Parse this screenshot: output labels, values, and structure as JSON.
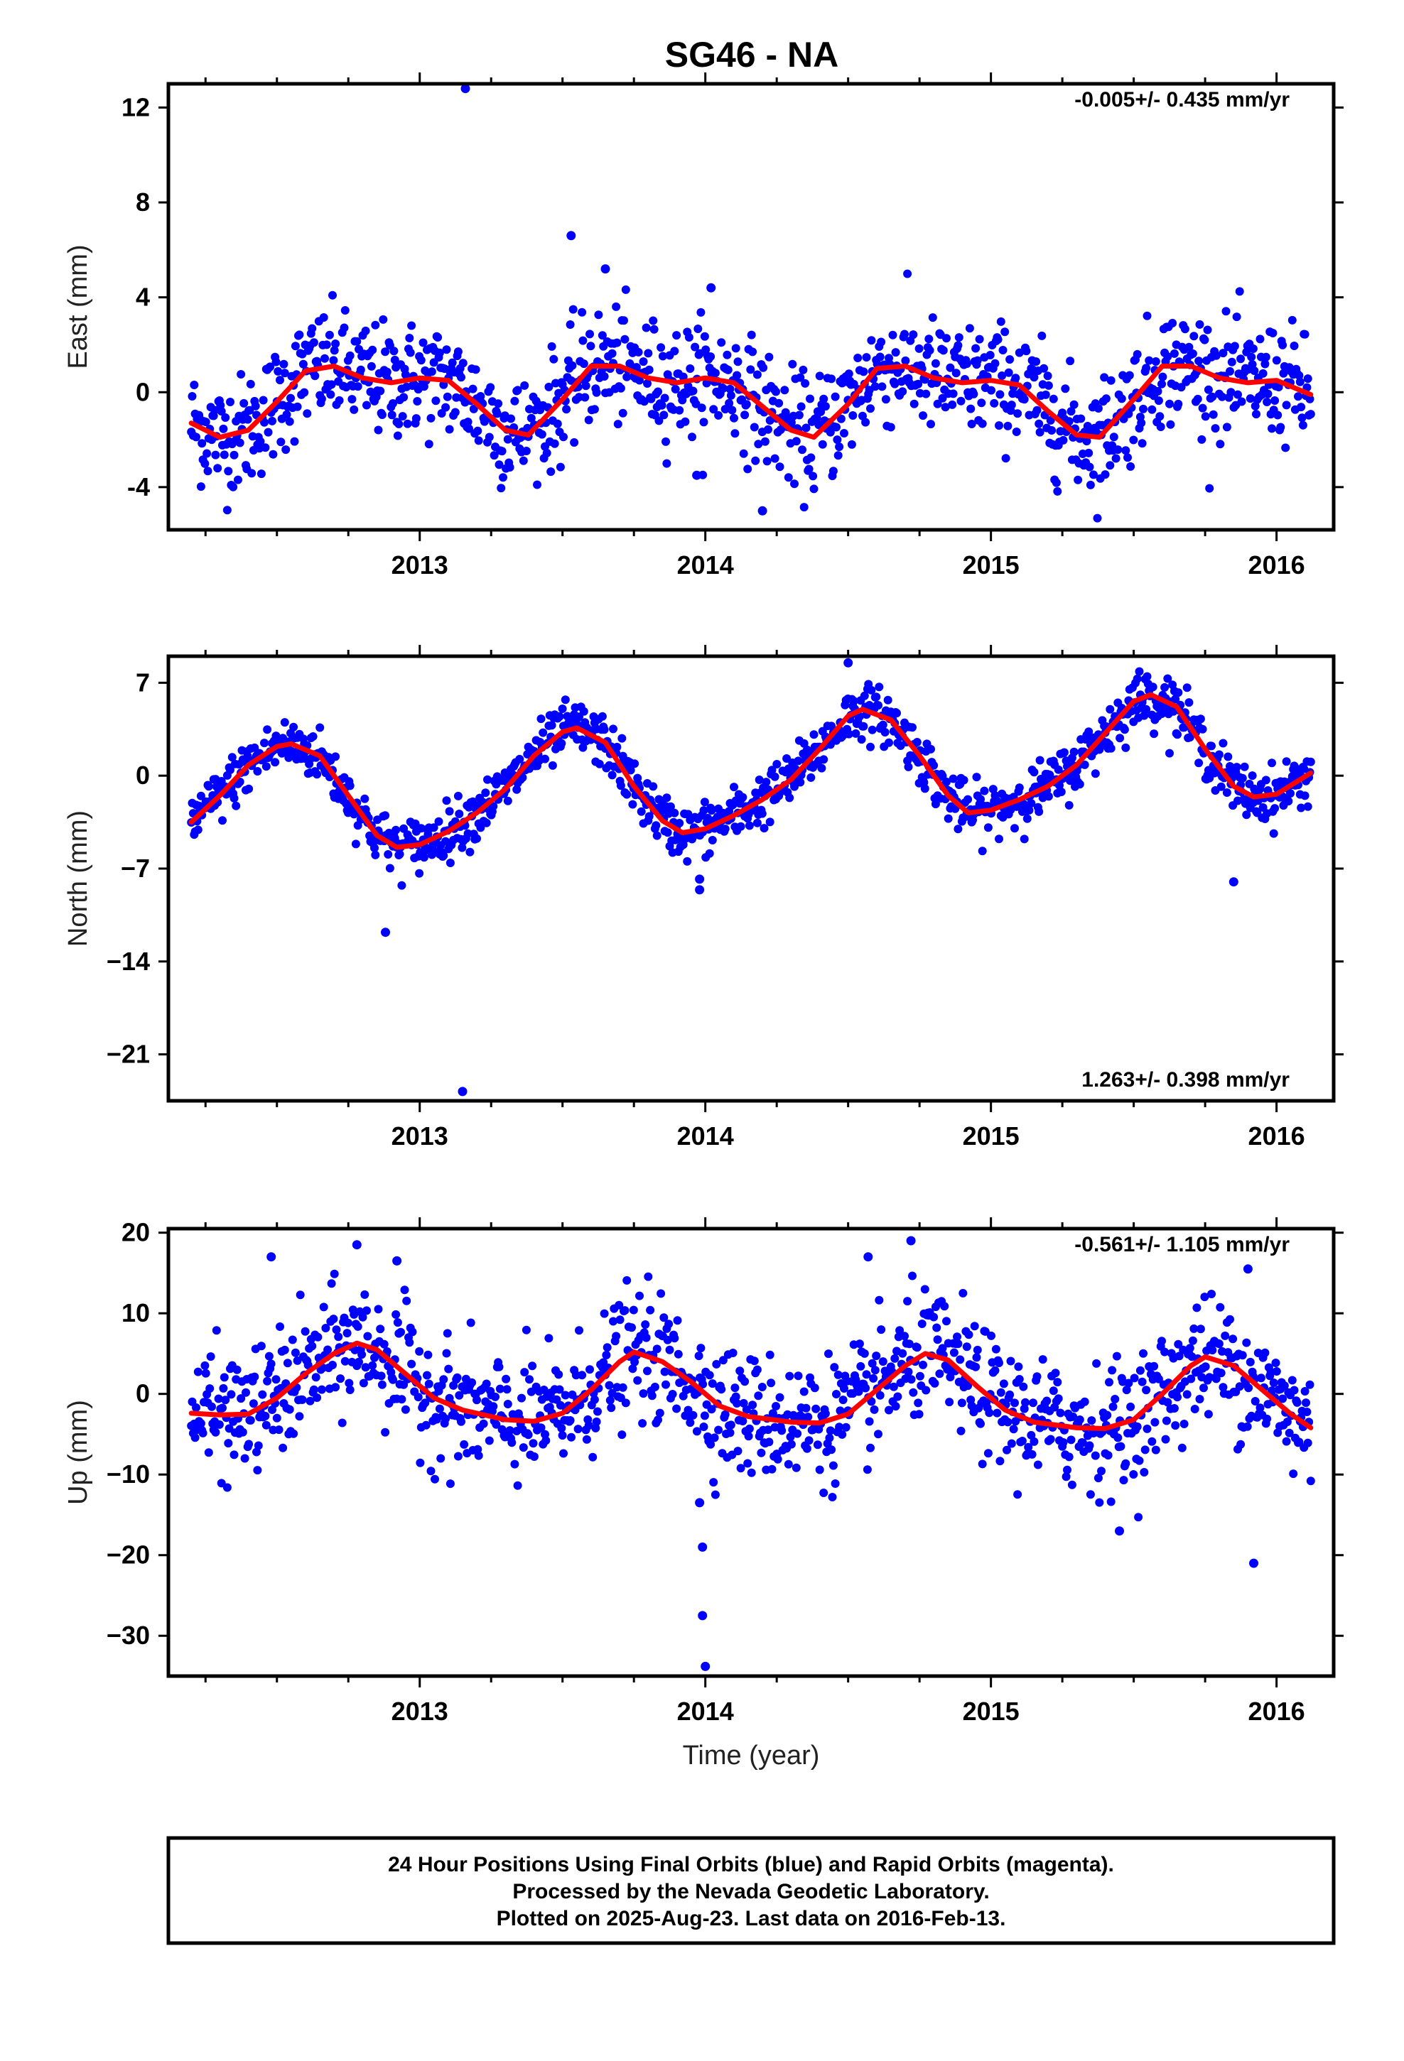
{
  "chart_data": [
    {
      "type": "scatter",
      "title": "SG46 - NA",
      "ylabel": "East (mm)",
      "xlabel": "",
      "rate_text": "-0.005+/- 0.435 mm/yr",
      "xlim": [
        2012.12,
        2016.2
      ],
      "ylim": [
        -5.8,
        13.0
      ],
      "yticks": [
        -4,
        0,
        4,
        8,
        12
      ],
      "ytick_labels": [
        "-4",
        "0",
        "4",
        "8",
        "12"
      ],
      "xticks": [
        2013,
        2014,
        2015,
        2016
      ],
      "xtick_labels": [
        "2013",
        "2014",
        "2015",
        "2016"
      ],
      "grid": false,
      "series": [
        {
          "kind": "daily positions",
          "color": "#0000ff",
          "x_start": 2012.2,
          "x_end": 2016.12,
          "points": 1150,
          "trend_mm_per_yr": -0.005,
          "annual_amplitude_mm": 1.3,
          "scatter_sd_mm": 1.2,
          "outliers": [
            [
              2013.16,
              12.8
            ],
            [
              2013.53,
              6.6
            ],
            [
              2013.65,
              5.2
            ],
            [
              2014.02,
              4.4
            ],
            [
              2013.97,
              -3.5
            ],
            [
              2014.2,
              -5.0
            ]
          ]
        },
        {
          "kind": "seasonal model",
          "color": "#ff0000",
          "points": [
            [
              2012.2,
              -1.3
            ],
            [
              2012.3,
              -1.9
            ],
            [
              2012.4,
              -1.6
            ],
            [
              2012.5,
              -0.4
            ],
            [
              2012.6,
              0.9
            ],
            [
              2012.7,
              1.1
            ],
            [
              2012.8,
              0.6
            ],
            [
              2012.9,
              0.4
            ],
            [
              2013.0,
              0.6
            ],
            [
              2013.1,
              0.5
            ],
            [
              2013.2,
              -0.5
            ],
            [
              2013.3,
              -1.6
            ],
            [
              2013.38,
              -1.8
            ],
            [
              2013.5,
              -0.3
            ],
            [
              2013.6,
              1.1
            ],
            [
              2013.7,
              1.1
            ],
            [
              2013.8,
              0.6
            ],
            [
              2013.9,
              0.4
            ],
            [
              2014.0,
              0.6
            ],
            [
              2014.1,
              0.4
            ],
            [
              2014.2,
              -0.6
            ],
            [
              2014.3,
              -1.6
            ],
            [
              2014.38,
              -1.9
            ],
            [
              2014.5,
              -0.5
            ],
            [
              2014.6,
              1.0
            ],
            [
              2014.7,
              1.1
            ],
            [
              2014.8,
              0.6
            ],
            [
              2014.9,
              0.4
            ],
            [
              2015.0,
              0.5
            ],
            [
              2015.1,
              0.3
            ],
            [
              2015.2,
              -0.8
            ],
            [
              2015.3,
              -1.8
            ],
            [
              2015.38,
              -1.9
            ],
            [
              2015.5,
              -0.3
            ],
            [
              2015.6,
              1.1
            ],
            [
              2015.7,
              1.1
            ],
            [
              2015.8,
              0.6
            ],
            [
              2015.9,
              0.4
            ],
            [
              2016.0,
              0.5
            ],
            [
              2016.12,
              -0.1
            ]
          ]
        }
      ]
    },
    {
      "type": "scatter",
      "title": "",
      "ylabel": "North (mm)",
      "xlabel": "",
      "rate_text": "1.263+/- 0.398 mm/yr",
      "xlim": [
        2012.12,
        2016.2
      ],
      "ylim": [
        -24.5,
        9.0
      ],
      "yticks": [
        -21,
        -14,
        -7,
        0,
        7
      ],
      "ytick_labels": [
        "−21",
        "−14",
        "−7",
        "0",
        "7"
      ],
      "xticks": [
        2013,
        2014,
        2015,
        2016
      ],
      "xtick_labels": [
        "2013",
        "2014",
        "2015",
        "2016"
      ],
      "grid": false,
      "series": [
        {
          "kind": "daily positions",
          "color": "#0000ff",
          "x_start": 2012.2,
          "x_end": 2016.12,
          "points": 1150,
          "trend_mm_per_yr": 1.263,
          "annual_amplitude_mm": 5.0,
          "scatter_sd_mm": 1.0,
          "outliers": [
            [
              2012.88,
              -11.8
            ],
            [
              2013.15,
              -23.8
            ],
            [
              2013.98,
              -8.6
            ],
            [
              2013.98,
              -7.8
            ],
            [
              2014.5,
              8.5
            ],
            [
              2015.85,
              -8.0
            ]
          ]
        },
        {
          "kind": "seasonal model",
          "color": "#ff0000",
          "points": [
            [
              2012.2,
              -3.5
            ],
            [
              2012.3,
              -1.5
            ],
            [
              2012.4,
              0.8
            ],
            [
              2012.5,
              2.2
            ],
            [
              2012.55,
              2.4
            ],
            [
              2012.65,
              1.5
            ],
            [
              2012.75,
              -1.5
            ],
            [
              2012.85,
              -4.5
            ],
            [
              2012.92,
              -5.4
            ],
            [
              2013.0,
              -5.2
            ],
            [
              2013.1,
              -4.2
            ],
            [
              2013.2,
              -2.8
            ],
            [
              2013.3,
              -1.0
            ],
            [
              2013.4,
              1.5
            ],
            [
              2013.5,
              3.3
            ],
            [
              2013.55,
              3.6
            ],
            [
              2013.65,
              2.5
            ],
            [
              2013.75,
              -0.8
            ],
            [
              2013.85,
              -3.4
            ],
            [
              2013.92,
              -4.3
            ],
            [
              2014.0,
              -4.0
            ],
            [
              2014.1,
              -3.0
            ],
            [
              2014.2,
              -1.8
            ],
            [
              2014.3,
              -0.3
            ],
            [
              2014.4,
              2.0
            ],
            [
              2014.5,
              4.5
            ],
            [
              2014.55,
              5.0
            ],
            [
              2014.65,
              4.2
            ],
            [
              2014.75,
              1.5
            ],
            [
              2014.85,
              -1.5
            ],
            [
              2014.92,
              -2.8
            ],
            [
              2015.0,
              -2.6
            ],
            [
              2015.1,
              -1.8
            ],
            [
              2015.2,
              -0.8
            ],
            [
              2015.3,
              0.8
            ],
            [
              2015.4,
              3.2
            ],
            [
              2015.5,
              5.6
            ],
            [
              2015.56,
              6.1
            ],
            [
              2015.65,
              5.2
            ],
            [
              2015.75,
              2.0
            ],
            [
              2015.85,
              -0.8
            ],
            [
              2015.92,
              -1.6
            ],
            [
              2016.0,
              -1.4
            ],
            [
              2016.12,
              0.2
            ]
          ]
        }
      ]
    },
    {
      "type": "scatter",
      "title": "",
      "ylabel": "Up (mm)",
      "xlabel": "Time (year)",
      "rate_text": "-0.561+/- 1.105 mm/yr",
      "xlim": [
        2012.12,
        2016.2
      ],
      "ylim": [
        -35.0,
        20.5
      ],
      "yticks": [
        -30,
        -20,
        -10,
        0,
        10,
        20
      ],
      "ytick_labels": [
        "−30",
        "−20",
        "−10",
        "0",
        "10",
        "20"
      ],
      "xticks": [
        2013,
        2014,
        2015,
        2016
      ],
      "xtick_labels": [
        "2013",
        "2014",
        "2015",
        "2016"
      ],
      "grid": false,
      "series": [
        {
          "kind": "daily positions",
          "color": "#0000ff",
          "x_start": 2012.2,
          "x_end": 2016.12,
          "points": 1150,
          "trend_mm_per_yr": -0.561,
          "annual_amplitude_mm": 4.5,
          "scatter_sd_mm": 3.8,
          "outliers": [
            [
              2012.48,
              17.0
            ],
            [
              2012.78,
              18.5
            ],
            [
              2012.92,
              16.5
            ],
            [
              2014.57,
              17.0
            ],
            [
              2014.72,
              19.0
            ],
            [
              2013.98,
              -13.5
            ],
            [
              2013.99,
              -19.0
            ],
            [
              2013.99,
              -27.5
            ],
            [
              2014.0,
              -33.8
            ],
            [
              2015.45,
              -17.0
            ],
            [
              2015.9,
              15.5
            ],
            [
              2015.92,
              -21.0
            ]
          ]
        },
        {
          "kind": "seasonal model",
          "color": "#ff0000",
          "points": [
            [
              2012.2,
              -2.4
            ],
            [
              2012.3,
              -2.6
            ],
            [
              2012.4,
              -2.5
            ],
            [
              2012.5,
              -0.5
            ],
            [
              2012.6,
              2.5
            ],
            [
              2012.7,
              5.0
            ],
            [
              2012.78,
              6.3
            ],
            [
              2012.85,
              5.5
            ],
            [
              2012.95,
              2.5
            ],
            [
              2013.05,
              -0.5
            ],
            [
              2013.15,
              -2.0
            ],
            [
              2013.3,
              -3.2
            ],
            [
              2013.4,
              -3.4
            ],
            [
              2013.5,
              -2.4
            ],
            [
              2013.6,
              0.5
            ],
            [
              2013.7,
              4.0
            ],
            [
              2013.75,
              5.2
            ],
            [
              2013.85,
              4.0
            ],
            [
              2013.95,
              1.5
            ],
            [
              2014.05,
              -1.5
            ],
            [
              2014.15,
              -2.8
            ],
            [
              2014.3,
              -3.5
            ],
            [
              2014.4,
              -3.6
            ],
            [
              2014.5,
              -2.5
            ],
            [
              2014.6,
              0.5
            ],
            [
              2014.7,
              3.5
            ],
            [
              2014.77,
              5.0
            ],
            [
              2014.85,
              4.2
            ],
            [
              2014.95,
              1.0
            ],
            [
              2015.05,
              -2.0
            ],
            [
              2015.15,
              -3.5
            ],
            [
              2015.3,
              -4.2
            ],
            [
              2015.4,
              -4.3
            ],
            [
              2015.5,
              -3.2
            ],
            [
              2015.6,
              0.0
            ],
            [
              2015.7,
              3.5
            ],
            [
              2015.75,
              4.6
            ],
            [
              2015.85,
              3.5
            ],
            [
              2015.95,
              0.5
            ],
            [
              2016.05,
              -2.5
            ],
            [
              2016.12,
              -4.2
            ]
          ]
        }
      ]
    }
  ],
  "footer": {
    "line1": "24 Hour Positions Using Final Orbits (blue) and Rapid Orbits (magenta).",
    "line2": "Processed by the Nevada Geodetic Laboratory.",
    "line3": "Plotted on 2025-Aug-23. Last data on 2016-Feb-13."
  }
}
